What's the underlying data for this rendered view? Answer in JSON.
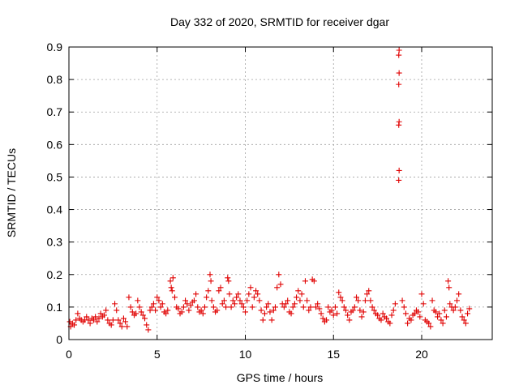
{
  "chart_data": {
    "type": "scatter",
    "title": "Day 332 of 2020, SRMTID for receiver dgar",
    "xlabel": "GPS time / hours",
    "ylabel": "SRMTID / TECUs",
    "xlim": [
      0,
      24
    ],
    "ylim": [
      0,
      0.9
    ],
    "xticks": [
      0,
      5,
      10,
      15,
      20
    ],
    "xtick_labels": [
      "0",
      "5",
      "10",
      "15",
      "20"
    ],
    "yticks": [
      0,
      0.1,
      0.2,
      0.3,
      0.4,
      0.5,
      0.6,
      0.7,
      0.8,
      0.9
    ],
    "ytick_labels": [
      "0",
      "0.1",
      "0.2",
      "0.3",
      "0.4",
      "0.5",
      "0.6",
      "0.7",
      "0.8",
      "0.9"
    ],
    "grid": true,
    "marker": "+",
    "color": "#e00000",
    "series": [
      {
        "name": "SRMTID",
        "points": [
          [
            0.05,
            0.055
          ],
          [
            0.1,
            0.04
          ],
          [
            0.2,
            0.05
          ],
          [
            0.3,
            0.045
          ],
          [
            0.4,
            0.06
          ],
          [
            0.5,
            0.08
          ],
          [
            0.6,
            0.065
          ],
          [
            0.7,
            0.06
          ],
          [
            0.8,
            0.055
          ],
          [
            0.9,
            0.06
          ],
          [
            1.0,
            0.07
          ],
          [
            1.1,
            0.06
          ],
          [
            1.2,
            0.05
          ],
          [
            1.3,
            0.065
          ],
          [
            1.4,
            0.06
          ],
          [
            1.5,
            0.07
          ],
          [
            1.6,
            0.055
          ],
          [
            1.7,
            0.065
          ],
          [
            1.8,
            0.08
          ],
          [
            1.9,
            0.07
          ],
          [
            2.0,
            0.075
          ],
          [
            2.1,
            0.09
          ],
          [
            2.2,
            0.06
          ],
          [
            2.3,
            0.05
          ],
          [
            2.4,
            0.045
          ],
          [
            2.5,
            0.06
          ],
          [
            2.6,
            0.11
          ],
          [
            2.7,
            0.09
          ],
          [
            2.8,
            0.06
          ],
          [
            2.9,
            0.05
          ],
          [
            3.0,
            0.04
          ],
          [
            3.1,
            0.065
          ],
          [
            3.2,
            0.055
          ],
          [
            3.3,
            0.04
          ],
          [
            3.4,
            0.13
          ],
          [
            3.5,
            0.1
          ],
          [
            3.6,
            0.085
          ],
          [
            3.7,
            0.075
          ],
          [
            3.8,
            0.08
          ],
          [
            3.9,
            0.12
          ],
          [
            4.0,
            0.1
          ],
          [
            4.1,
            0.085
          ],
          [
            4.2,
            0.075
          ],
          [
            4.3,
            0.065
          ],
          [
            4.4,
            0.045
          ],
          [
            4.5,
            0.03
          ],
          [
            4.6,
            0.09
          ],
          [
            4.7,
            0.1
          ],
          [
            4.8,
            0.11
          ],
          [
            4.9,
            0.09
          ],
          [
            5.0,
            0.13
          ],
          [
            5.1,
            0.12
          ],
          [
            5.2,
            0.1
          ],
          [
            5.3,
            0.11
          ],
          [
            5.4,
            0.085
          ],
          [
            5.5,
            0.08
          ],
          [
            5.6,
            0.09
          ],
          [
            5.75,
            0.18
          ],
          [
            5.8,
            0.16
          ],
          [
            5.85,
            0.15
          ],
          [
            5.9,
            0.19
          ],
          [
            6.0,
            0.13
          ],
          [
            6.1,
            0.1
          ],
          [
            6.2,
            0.095
          ],
          [
            6.3,
            0.08
          ],
          [
            6.4,
            0.085
          ],
          [
            6.5,
            0.1
          ],
          [
            6.6,
            0.12
          ],
          [
            6.7,
            0.11
          ],
          [
            6.8,
            0.09
          ],
          [
            6.9,
            0.105
          ],
          [
            7.0,
            0.115
          ],
          [
            7.1,
            0.12
          ],
          [
            7.2,
            0.14
          ],
          [
            7.3,
            0.1
          ],
          [
            7.4,
            0.085
          ],
          [
            7.5,
            0.09
          ],
          [
            7.6,
            0.08
          ],
          [
            7.7,
            0.1
          ],
          [
            7.8,
            0.13
          ],
          [
            7.9,
            0.15
          ],
          [
            8.0,
            0.2
          ],
          [
            8.05,
            0.18
          ],
          [
            8.1,
            0.12
          ],
          [
            8.2,
            0.1
          ],
          [
            8.3,
            0.085
          ],
          [
            8.4,
            0.09
          ],
          [
            8.5,
            0.15
          ],
          [
            8.6,
            0.16
          ],
          [
            8.7,
            0.11
          ],
          [
            8.8,
            0.12
          ],
          [
            8.9,
            0.1
          ],
          [
            9.0,
            0.19
          ],
          [
            9.05,
            0.18
          ],
          [
            9.1,
            0.14
          ],
          [
            9.2,
            0.1
          ],
          [
            9.3,
            0.12
          ],
          [
            9.4,
            0.11
          ],
          [
            9.5,
            0.13
          ],
          [
            9.6,
            0.14
          ],
          [
            9.7,
            0.12
          ],
          [
            9.8,
            0.11
          ],
          [
            9.9,
            0.1
          ],
          [
            10.0,
            0.085
          ],
          [
            10.1,
            0.12
          ],
          [
            10.2,
            0.14
          ],
          [
            10.3,
            0.16
          ],
          [
            10.4,
            0.1
          ],
          [
            10.5,
            0.13
          ],
          [
            10.6,
            0.15
          ],
          [
            10.7,
            0.14
          ],
          [
            10.8,
            0.12
          ],
          [
            10.9,
            0.09
          ],
          [
            11.0,
            0.06
          ],
          [
            11.1,
            0.08
          ],
          [
            11.2,
            0.1
          ],
          [
            11.3,
            0.11
          ],
          [
            11.4,
            0.085
          ],
          [
            11.5,
            0.06
          ],
          [
            11.6,
            0.09
          ],
          [
            11.7,
            0.1
          ],
          [
            11.8,
            0.16
          ],
          [
            11.9,
            0.2
          ],
          [
            12.0,
            0.17
          ],
          [
            12.1,
            0.11
          ],
          [
            12.2,
            0.1
          ],
          [
            12.3,
            0.11
          ],
          [
            12.4,
            0.12
          ],
          [
            12.5,
            0.085
          ],
          [
            12.6,
            0.08
          ],
          [
            12.7,
            0.1
          ],
          [
            12.8,
            0.11
          ],
          [
            12.9,
            0.13
          ],
          [
            13.0,
            0.15
          ],
          [
            13.1,
            0.12
          ],
          [
            13.2,
            0.14
          ],
          [
            13.3,
            0.1
          ],
          [
            13.4,
            0.18
          ],
          [
            13.5,
            0.12
          ],
          [
            13.6,
            0.09
          ],
          [
            13.7,
            0.1
          ],
          [
            13.8,
            0.185
          ],
          [
            13.9,
            0.18
          ],
          [
            14.0,
            0.1
          ],
          [
            14.1,
            0.11
          ],
          [
            14.2,
            0.095
          ],
          [
            14.3,
            0.08
          ],
          [
            14.4,
            0.065
          ],
          [
            14.5,
            0.055
          ],
          [
            14.6,
            0.06
          ],
          [
            14.7,
            0.1
          ],
          [
            14.8,
            0.085
          ],
          [
            14.9,
            0.09
          ],
          [
            15.0,
            0.075
          ],
          [
            15.1,
            0.1
          ],
          [
            15.2,
            0.08
          ],
          [
            15.3,
            0.145
          ],
          [
            15.4,
            0.13
          ],
          [
            15.5,
            0.12
          ],
          [
            15.6,
            0.1
          ],
          [
            15.7,
            0.09
          ],
          [
            15.8,
            0.075
          ],
          [
            15.9,
            0.06
          ],
          [
            16.0,
            0.085
          ],
          [
            16.1,
            0.09
          ],
          [
            16.2,
            0.1
          ],
          [
            16.3,
            0.13
          ],
          [
            16.4,
            0.12
          ],
          [
            16.5,
            0.09
          ],
          [
            16.6,
            0.07
          ],
          [
            16.7,
            0.085
          ],
          [
            16.8,
            0.12
          ],
          [
            16.9,
            0.14
          ],
          [
            17.0,
            0.15
          ],
          [
            17.1,
            0.12
          ],
          [
            17.2,
            0.1
          ],
          [
            17.3,
            0.09
          ],
          [
            17.4,
            0.08
          ],
          [
            17.5,
            0.075
          ],
          [
            17.6,
            0.065
          ],
          [
            17.7,
            0.06
          ],
          [
            17.8,
            0.08
          ],
          [
            17.9,
            0.07
          ],
          [
            18.0,
            0.065
          ],
          [
            18.1,
            0.055
          ],
          [
            18.2,
            0.05
          ],
          [
            18.3,
            0.075
          ],
          [
            18.4,
            0.09
          ],
          [
            18.5,
            0.11
          ],
          [
            18.7,
            0.49
          ],
          [
            18.72,
            0.52
          ],
          [
            18.7,
            0.66
          ],
          [
            18.72,
            0.67
          ],
          [
            18.7,
            0.785
          ],
          [
            18.72,
            0.82
          ],
          [
            18.7,
            0.875
          ],
          [
            18.72,
            0.89
          ],
          [
            18.9,
            0.12
          ],
          [
            19.0,
            0.1
          ],
          [
            19.1,
            0.08
          ],
          [
            19.2,
            0.05
          ],
          [
            19.3,
            0.065
          ],
          [
            19.4,
            0.06
          ],
          [
            19.5,
            0.075
          ],
          [
            19.6,
            0.08
          ],
          [
            19.7,
            0.09
          ],
          [
            19.8,
            0.085
          ],
          [
            19.9,
            0.07
          ],
          [
            20.0,
            0.14
          ],
          [
            20.1,
            0.11
          ],
          [
            20.2,
            0.06
          ],
          [
            20.3,
            0.055
          ],
          [
            20.4,
            0.05
          ],
          [
            20.5,
            0.04
          ],
          [
            20.6,
            0.12
          ],
          [
            20.7,
            0.09
          ],
          [
            20.8,
            0.085
          ],
          [
            20.9,
            0.07
          ],
          [
            21.0,
            0.08
          ],
          [
            21.1,
            0.06
          ],
          [
            21.2,
            0.05
          ],
          [
            21.3,
            0.09
          ],
          [
            21.4,
            0.07
          ],
          [
            21.5,
            0.18
          ],
          [
            21.55,
            0.16
          ],
          [
            21.6,
            0.11
          ],
          [
            21.7,
            0.1
          ],
          [
            21.8,
            0.09
          ],
          [
            21.9,
            0.1
          ],
          [
            22.0,
            0.12
          ],
          [
            22.1,
            0.14
          ],
          [
            22.2,
            0.09
          ],
          [
            22.3,
            0.07
          ],
          [
            22.4,
            0.06
          ],
          [
            22.5,
            0.05
          ],
          [
            22.6,
            0.08
          ],
          [
            22.7,
            0.095
          ]
        ]
      }
    ]
  }
}
